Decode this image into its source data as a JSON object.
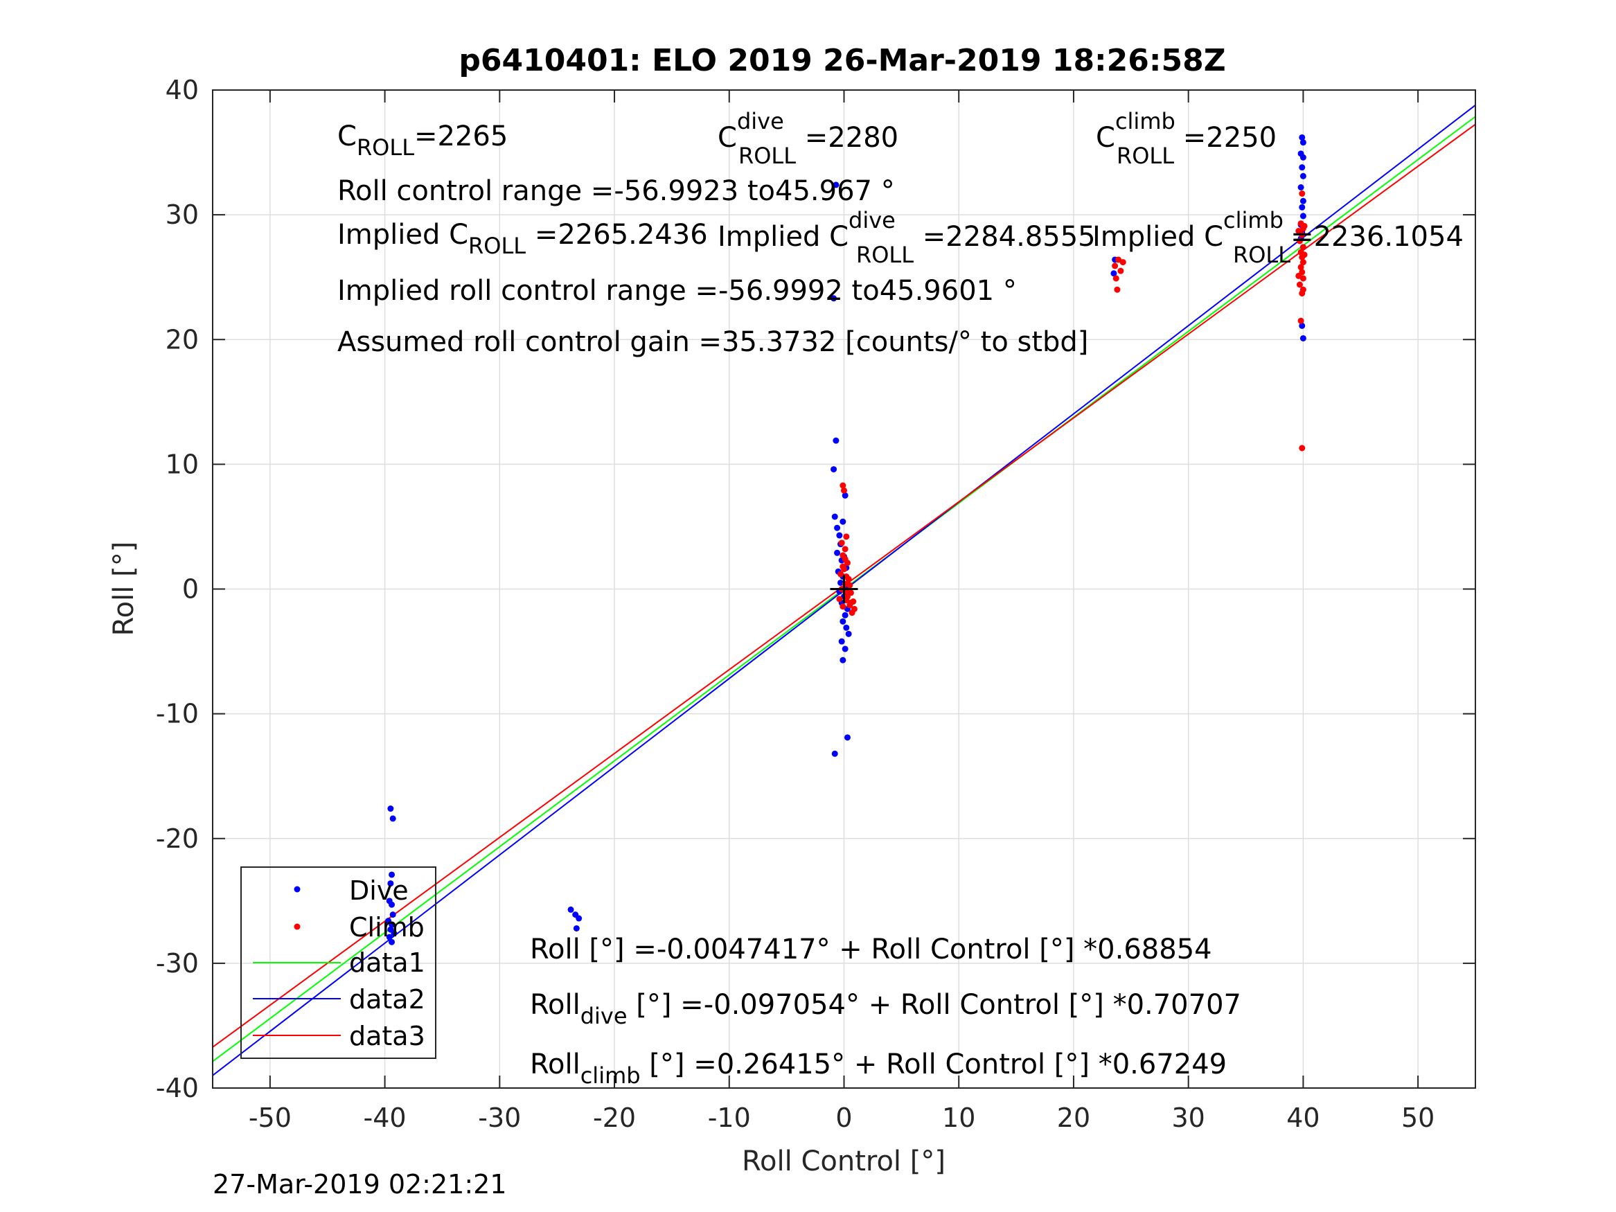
{
  "chart_data": {
    "type": "scatter",
    "title": "p6410401: ELO 2019 26-Mar-2019 18:26:58Z",
    "xlabel": "Roll Control [°]",
    "ylabel": "Roll [°]",
    "xlim": [
      -55,
      55
    ],
    "ylim": [
      -40,
      40
    ],
    "grid": true,
    "xticks": [
      -50,
      -40,
      -30,
      -20,
      -10,
      0,
      10,
      20,
      30,
      40,
      50
    ],
    "yticks": [
      -40,
      -30,
      -20,
      -10,
      0,
      10,
      20,
      30,
      40
    ],
    "xtick_labels": [
      "-50",
      "-40",
      "-30",
      "-20",
      "-10",
      "0",
      "10",
      "20",
      "30",
      "40",
      "50"
    ],
    "ytick_labels": [
      "-40",
      "-30",
      "-20",
      "-10",
      "0",
      "10",
      "20",
      "30",
      "40"
    ],
    "legend_position": "bottom-left",
    "series": [
      {
        "name": "Dive",
        "kind": "points",
        "color": "#0000ff",
        "points": [
          [
            -39.5,
            -17.6
          ],
          [
            -39.3,
            -18.4
          ],
          [
            -39.4,
            -22.9
          ],
          [
            -39.5,
            -23.6
          ],
          [
            -39.6,
            -25.0
          ],
          [
            -39.4,
            -25.3
          ],
          [
            -39.3,
            -26.1
          ],
          [
            -39.7,
            -26.6
          ],
          [
            -39.4,
            -26.9
          ],
          [
            -39.5,
            -27.3
          ],
          [
            -39.2,
            -27.6
          ],
          [
            -39.6,
            -27.9
          ],
          [
            -39.4,
            -28.3
          ],
          [
            -23.8,
            -25.7
          ],
          [
            -23.4,
            -26.1
          ],
          [
            -23.1,
            -26.4
          ],
          [
            -23.3,
            -27.2
          ],
          [
            -0.7,
            11.9
          ],
          [
            -0.9,
            9.6
          ],
          [
            -0.8,
            5.8
          ],
          [
            -0.6,
            4.9
          ],
          [
            -0.4,
            4.3
          ],
          [
            -0.3,
            3.6
          ],
          [
            -0.6,
            2.9
          ],
          [
            -0.2,
            2.3
          ],
          [
            -0.5,
            1.4
          ],
          [
            -0.1,
            1.0
          ],
          [
            -0.3,
            0.5
          ],
          [
            0.2,
            0.2
          ],
          [
            -0.4,
            -0.2
          ],
          [
            0.0,
            -0.6
          ],
          [
            -0.2,
            -1.1
          ],
          [
            0.3,
            -1.6
          ],
          [
            0.1,
            -2.1
          ],
          [
            -0.1,
            -2.6
          ],
          [
            0.2,
            -3.1
          ],
          [
            0.4,
            -3.6
          ],
          [
            -0.2,
            -4.2
          ],
          [
            0.1,
            -4.8
          ],
          [
            -0.1,
            -5.7
          ],
          [
            -0.8,
            -13.2
          ],
          [
            0.3,
            -11.9
          ],
          [
            0.1,
            7.5
          ],
          [
            -0.1,
            5.4
          ],
          [
            0.0,
            2.6
          ],
          [
            0.2,
            1.7
          ],
          [
            -0.7,
            32.4
          ],
          [
            -0.9,
            23.3
          ],
          [
            23.5,
            25.3
          ],
          [
            23.6,
            26.4
          ],
          [
            39.9,
            36.2
          ],
          [
            40.0,
            35.8
          ],
          [
            39.8,
            34.9
          ],
          [
            40.0,
            34.6
          ],
          [
            39.9,
            33.8
          ],
          [
            40.0,
            33.1
          ],
          [
            39.8,
            32.2
          ],
          [
            40.0,
            31.1
          ],
          [
            39.9,
            30.6
          ],
          [
            40.0,
            29.9
          ],
          [
            39.9,
            28.6
          ],
          [
            39.8,
            28.1
          ],
          [
            40.0,
            27.4
          ],
          [
            39.9,
            21.1
          ],
          [
            40.0,
            20.1
          ],
          [
            39.8,
            29.2
          ]
        ]
      },
      {
        "name": "Climb",
        "kind": "points",
        "color": "#ff0000",
        "points": [
          [
            -0.1,
            8.3
          ],
          [
            0.0,
            7.9
          ],
          [
            0.2,
            4.2
          ],
          [
            -0.2,
            3.7
          ],
          [
            0.1,
            3.2
          ],
          [
            -0.1,
            2.7
          ],
          [
            0.3,
            2.1
          ],
          [
            0.0,
            1.6
          ],
          [
            -0.3,
            1.2
          ],
          [
            0.4,
            0.8
          ],
          [
            0.1,
            0.4
          ],
          [
            -0.2,
            0.0
          ],
          [
            0.6,
            -0.3
          ],
          [
            0.3,
            -0.6
          ],
          [
            -0.4,
            -0.8
          ],
          [
            0.8,
            -1.0
          ],
          [
            0.5,
            -1.3
          ],
          [
            0.9,
            -1.6
          ],
          [
            0.7,
            -1.9
          ],
          [
            -0.1,
            -1.4
          ],
          [
            0.2,
            -0.9
          ],
          [
            0.0,
            -0.1
          ],
          [
            0.5,
            0.3
          ],
          [
            0.2,
            1.0
          ],
          [
            -0.1,
            1.8
          ],
          [
            0.1,
            2.4
          ],
          [
            0.3,
            -0.2
          ],
          [
            0.6,
            -1.1
          ],
          [
            23.6,
            25.9
          ],
          [
            23.7,
            24.9
          ],
          [
            23.8,
            24.0
          ],
          [
            24.1,
            25.5
          ],
          [
            24.3,
            26.2
          ],
          [
            23.9,
            26.4
          ],
          [
            39.9,
            31.7
          ],
          [
            39.8,
            29.3
          ],
          [
            40.0,
            28.9
          ],
          [
            39.9,
            28.4
          ],
          [
            39.7,
            27.9
          ],
          [
            40.0,
            27.4
          ],
          [
            39.8,
            27.0
          ],
          [
            39.9,
            26.6
          ],
          [
            40.0,
            26.2
          ],
          [
            39.8,
            25.8
          ],
          [
            39.9,
            25.4
          ],
          [
            40.0,
            24.9
          ],
          [
            39.7,
            24.4
          ],
          [
            40.0,
            24.0
          ],
          [
            39.9,
            23.7
          ],
          [
            39.8,
            21.5
          ],
          [
            39.9,
            11.3
          ],
          [
            40.1,
            29.1
          ],
          [
            39.6,
            28.7
          ],
          [
            40.1,
            26.8
          ],
          [
            39.6,
            25.1
          ]
        ]
      },
      {
        "name": "data1",
        "kind": "line",
        "color": "#00ff00",
        "x": [
          -55,
          55
        ],
        "y": [
          -37.87,
          37.87
        ]
      },
      {
        "name": "data2",
        "kind": "line",
        "color": "#0000ff",
        "x": [
          -55,
          55
        ],
        "y": [
          -38.99,
          38.79
        ]
      },
      {
        "name": "data3",
        "kind": "line",
        "color": "#ff0000",
        "x": [
          -55,
          55
        ],
        "y": [
          -36.72,
          37.25
        ]
      }
    ],
    "origin_marker": {
      "x": 0,
      "y": 0,
      "color": "#000000"
    },
    "annotations": {
      "c_roll_base": "C",
      "c_roll_sub": "ROLL",
      "c_roll_value": "=2265",
      "c_dive_base": "C",
      "c_dive_sup": "dive",
      "c_dive_sub": "ROLL",
      "c_dive_value": " =2280",
      "c_climb_base": "C",
      "c_climb_sup": "climb",
      "c_climb_sub": "ROLL",
      "c_climb_value": " =2250",
      "roll_control_range": "Roll control range =-56.9923 to45.967 °",
      "implied_c_roll_prefix": "Implied C",
      "implied_c_roll_sub": "ROLL",
      "implied_c_roll_value": " =2265.2436",
      "implied_c_dive_prefix": "Implied C",
      "implied_c_dive_sup": "dive",
      "implied_c_dive_sub": "ROLL",
      "implied_c_dive_value": " =2284.8555",
      "implied_c_climb_prefix": "Implied C",
      "implied_c_climb_sup": "climb",
      "implied_c_climb_sub": "ROLL",
      "implied_c_climb_value": "=2236.1054",
      "implied_range": "Implied roll control range =-56.9992 to45.9601 °",
      "gain": "Assumed roll control gain =35.3732 [counts/° to stbd]",
      "fit_all": "Roll [°] =-0.0047417° + Roll Control [°] *0.68854",
      "fit_dive_base": "Roll",
      "fit_dive_sub": "dive",
      "fit_dive_rest": " [°] =-0.097054° + Roll Control [°] *0.70707",
      "fit_climb_base": "Roll",
      "fit_climb_sub": "climb",
      "fit_climb_rest": " [°] =0.26415° + Roll Control [°] *0.67249"
    },
    "timestamp": "27-Mar-2019 02:21:21"
  }
}
